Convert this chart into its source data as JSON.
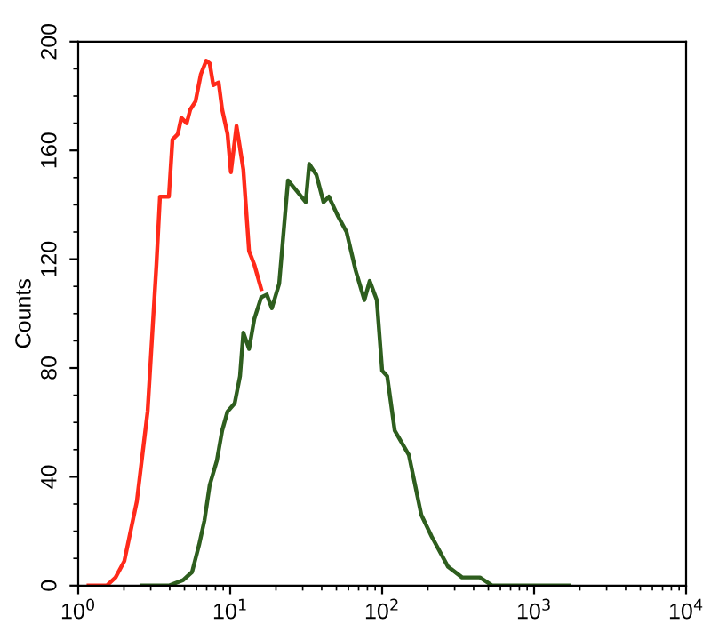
{
  "chart_data": {
    "type": "line",
    "ylabel": "Counts",
    "log": "x",
    "grid": false,
    "legend": false,
    "marker": "none",
    "line_style": "solid",
    "xlim": [
      1,
      10000
    ],
    "ylim": [
      0,
      200
    ],
    "xticks": [
      {
        "value": 1,
        "label": "10$^{0}$"
      },
      {
        "value": 10,
        "label": "10$^{1}$"
      },
      {
        "value": 100,
        "label": "10$^{2}$"
      },
      {
        "value": 1000,
        "label": "10$^{3}$"
      },
      {
        "value": 10000,
        "label": "10$^{4}$"
      }
    ],
    "yticks": [
      0,
      40,
      80,
      120,
      160,
      200
    ],
    "series": [
      {
        "color": "#ff2a1a",
        "x": [
          1.17,
          1.54,
          1.76,
          2.01,
          2.43,
          2.86,
          3.27,
          3.45,
          3.95,
          4.17,
          4.52,
          4.77,
          5.17,
          5.46,
          5.91,
          6.41,
          6.95,
          7.33,
          7.74,
          8.39,
          8.85,
          9.6,
          10.1,
          11.0,
          12.2,
          13.3,
          14.4,
          16.0
        ],
        "values": [
          0,
          0,
          3,
          9,
          31,
          64,
          118,
          143,
          143,
          164,
          166,
          172,
          170,
          175,
          178,
          188,
          193,
          192,
          184,
          185,
          175,
          166,
          152,
          169,
          153,
          123,
          118,
          109
        ]
      },
      {
        "color": "#2e5e1e",
        "x": [
          2.64,
          3.95,
          4.9,
          5.61,
          6.24,
          6.77,
          7.33,
          8.17,
          8.85,
          9.6,
          10.7,
          11.6,
          12.2,
          13.3,
          14.4,
          16.0,
          17.4,
          18.8,
          21.0,
          24.0,
          27.5,
          31.4,
          33.1,
          36.9,
          41.1,
          44.6,
          51.0,
          58.3,
          66.8,
          76.4,
          82.8,
          92.2,
          100,
          108,
          121,
          150,
          181,
          212,
          271,
          336,
          440,
          531,
          986,
          1690
        ],
        "values": [
          0,
          0,
          2,
          5,
          15,
          24,
          37,
          46,
          57,
          64,
          67,
          77,
          93,
          87,
          98,
          106,
          107,
          102,
          111,
          149,
          145,
          141,
          155,
          151,
          141,
          143,
          136,
          130,
          116,
          105,
          112,
          105,
          79,
          77,
          57,
          48,
          26,
          18,
          7,
          3,
          3,
          0,
          0,
          0
        ]
      }
    ]
  }
}
